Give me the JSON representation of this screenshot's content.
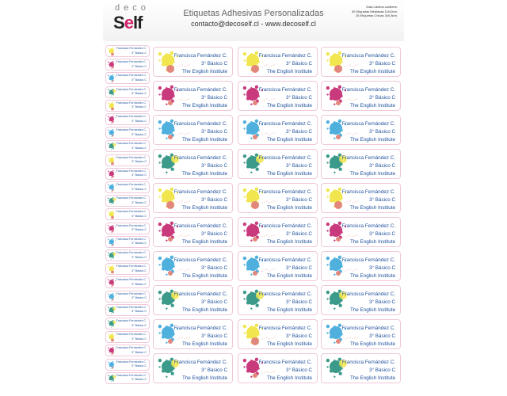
{
  "header": {
    "brand_top": "deco",
    "brand_bottom_a": "S",
    "brand_bottom_b": "e",
    "brand_bottom_c": "lf",
    "title": "Etiquetas Adhesivas Personalizadas",
    "contact": "contacto@decoself.cl - www.decoself.cl",
    "info": [
      "Esta Lámina contiene:",
      "30 Etiquetas Medianas 5,5x2cm.",
      "25 Etiquetas Chicas 3x0,8cm."
    ]
  },
  "label": {
    "name": "Francisca Fernández C.",
    "grade": "3° Básico C",
    "school": "The English Institute"
  },
  "colors": {
    "yellow": "#f1e64e",
    "magenta": "#c93a7c",
    "blue": "#4fb0de",
    "green": "#3b9a89",
    "salmon": "#e2877c",
    "border": "#f0c8da",
    "text": "#1d4f9c"
  },
  "medium_rows": [
    [
      "yellow",
      "yellow",
      "yellow"
    ],
    [
      "magenta",
      "magenta",
      "magenta"
    ],
    [
      "blue",
      "blue",
      "blue"
    ],
    [
      "green",
      "green",
      "green"
    ],
    [
      "yellow",
      "yellow",
      "yellow"
    ],
    [
      "magenta",
      "magenta",
      "magenta"
    ],
    [
      "blue",
      "blue",
      "blue"
    ],
    [
      "green",
      "green",
      "green"
    ],
    [
      "blue",
      "yellow",
      "blue"
    ],
    [
      "green",
      "magenta",
      "green"
    ]
  ],
  "small_labels": [
    "yellow",
    "magenta",
    "blue",
    "green",
    "yellow",
    "magenta",
    "blue",
    "green",
    "yellow",
    "magenta",
    "blue",
    "green",
    "yellow",
    "magenta",
    "blue",
    "green",
    "yellow",
    "magenta",
    "blue",
    "green",
    "green",
    "yellow",
    "magenta",
    "blue",
    "green"
  ]
}
